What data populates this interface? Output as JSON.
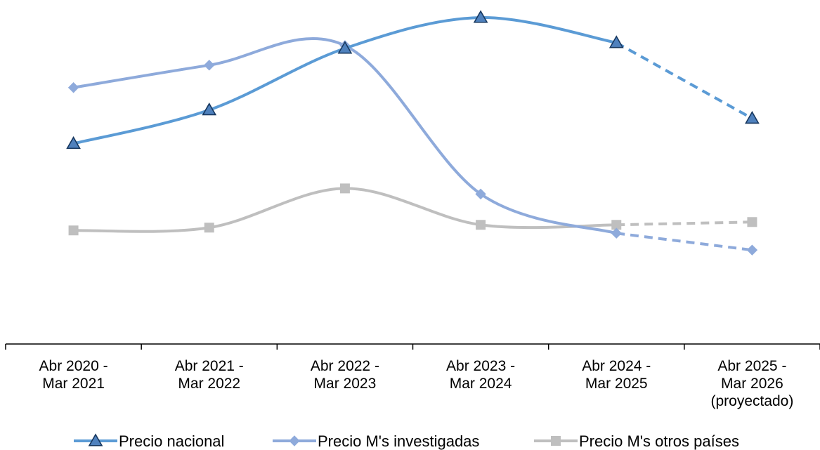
{
  "chart_data": {
    "type": "line",
    "title": "",
    "xlabel": "",
    "ylabel": "",
    "ylim": [
      0,
      100
    ],
    "grid": false,
    "legend_position": "bottom",
    "categories": [
      [
        "Abr  2020 -",
        "Mar 2021"
      ],
      [
        "Abr  2021 -",
        "Mar 2022"
      ],
      [
        "Abr  2022 -",
        "Mar 2023"
      ],
      [
        "Abr  2023 -",
        "Mar 2024"
      ],
      [
        "Abr  2024 -",
        "Mar 2025"
      ],
      [
        "Abr  2025 -",
        "Mar 2026",
        "(proyectado)"
      ]
    ],
    "projected_from_index": 4,
    "series": [
      {
        "name": "Precio nacional",
        "color": "#5b9bd5",
        "marker": "triangle",
        "values": [
          55,
          67,
          89,
          100,
          91,
          64
        ]
      },
      {
        "name": "Precio M's investigadas",
        "color": "#8eaadb",
        "marker": "diamond",
        "values": [
          75,
          83,
          90,
          37,
          23,
          17
        ]
      },
      {
        "name": "Precio M's otros países",
        "color": "#bfbfbf",
        "marker": "square",
        "values": [
          24,
          25,
          39,
          26,
          26,
          27
        ]
      }
    ]
  }
}
